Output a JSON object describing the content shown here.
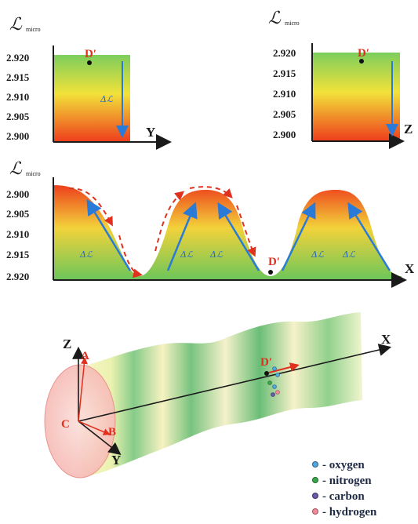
{
  "panels": {
    "top_left": {
      "ylabel": "ℒ",
      "ylabel_sub": "micro",
      "ticks": [
        "2.920",
        "2.915",
        "2.910",
        "2.905",
        "2.900"
      ],
      "axis": "Y",
      "point": "D′",
      "delta": "Δℒ"
    },
    "top_right": {
      "ylabel": "ℒ",
      "ylabel_sub": "micro",
      "ticks": [
        "2.920",
        "2.915",
        "2.910",
        "2.905",
        "2.900"
      ],
      "axis": "Z",
      "point": "D′"
    },
    "middle": {
      "ylabel": "ℒ",
      "ylabel_sub": "micro",
      "ticks": [
        "2.900",
        "2.905",
        "2.910",
        "2.915",
        "2.920"
      ],
      "axis": "X",
      "point": "D′",
      "delta": "Δℒ"
    }
  },
  "scene": {
    "axis_x": "X",
    "axis_y": "Y",
    "axis_z": "Z",
    "point_a": "A",
    "point_b": "B",
    "point_c": "C",
    "point_d": "D′"
  },
  "legend": [
    {
      "label": "- oxygen",
      "color": "#4fa8e0"
    },
    {
      "label": "- nitrogen",
      "color": "#3aa64a"
    },
    {
      "label": "- carbon",
      "color": "#6a5aa8"
    },
    {
      "label": "- hydrogen",
      "color": "#f08a9a"
    }
  ],
  "colors": {
    "surface_top": "#8cd46a",
    "surface_mid": "#f2e23a",
    "surface_bottom": "#ef4a22",
    "arrow_blue": "#2a7ad8",
    "arrow_red": "#e0301e"
  }
}
